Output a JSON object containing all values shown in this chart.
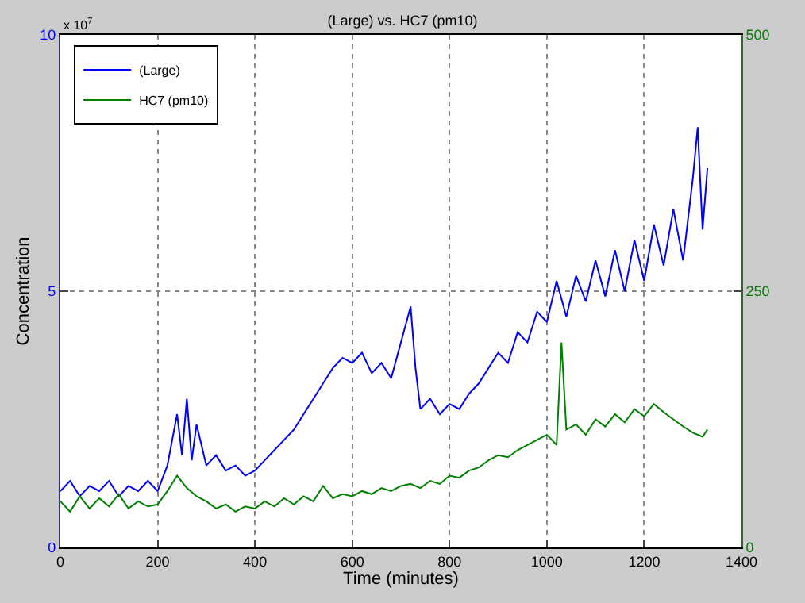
{
  "chart_data": {
    "type": "line",
    "title": "(Large) vs. HC7 (pm10)",
    "xlabel": "Time (minutes)",
    "ylabel": "Concentration",
    "annotations": [
      "x 10$^{7}$"
    ],
    "xlim": [
      0,
      1400
    ],
    "xticks": [
      0,
      200,
      400,
      600,
      800,
      1000,
      1200,
      1400
    ],
    "ylim": [
      0,
      10
    ],
    "yticks": [
      0,
      5,
      10
    ],
    "y2lim": [
      0,
      500
    ],
    "y2ticks": [
      0,
      250,
      500
    ],
    "grid": true,
    "legend": "top left",
    "line_style": "solid",
    "series": [
      {
        "name": "(Large)",
        "color": "#0000ff",
        "x": [
          0,
          20,
          40,
          60,
          80,
          100,
          120,
          140,
          160,
          180,
          200,
          220,
          240,
          250,
          260,
          270,
          280,
          300,
          320,
          340,
          360,
          380,
          400,
          420,
          440,
          460,
          480,
          500,
          520,
          540,
          560,
          580,
          600,
          620,
          640,
          660,
          680,
          700,
          720,
          730,
          740,
          760,
          780,
          800,
          820,
          840,
          860,
          880,
          900,
          920,
          940,
          960,
          980,
          1000,
          1020,
          1040,
          1060,
          1080,
          1100,
          1120,
          1140,
          1160,
          1180,
          1200,
          1220,
          1240,
          1260,
          1280,
          1300,
          1310,
          1320,
          1330
        ],
        "values": [
          1.1,
          1.3,
          1.0,
          1.2,
          1.1,
          1.3,
          1.0,
          1.2,
          1.1,
          1.3,
          1.1,
          1.6,
          2.6,
          1.8,
          2.9,
          1.7,
          2.4,
          1.6,
          1.8,
          1.5,
          1.6,
          1.4,
          1.5,
          1.7,
          1.9,
          2.1,
          2.3,
          2.6,
          2.9,
          3.2,
          3.5,
          3.7,
          3.6,
          3.8,
          3.4,
          3.6,
          3.3,
          4.0,
          4.7,
          3.5,
          2.7,
          2.9,
          2.6,
          2.8,
          2.7,
          3.0,
          3.2,
          3.5,
          3.8,
          3.6,
          4.2,
          4.0,
          4.6,
          4.4,
          5.2,
          4.5,
          5.3,
          4.8,
          5.6,
          4.9,
          5.8,
          5.0,
          6.0,
          5.2,
          6.3,
          5.5,
          6.6,
          5.6,
          7.2,
          8.2,
          6.2,
          7.4
        ]
      },
      {
        "name": "HC7 (pm10)",
        "color": "#008000",
        "axis": "y2",
        "x": [
          0,
          20,
          40,
          60,
          80,
          100,
          120,
          140,
          160,
          180,
          200,
          220,
          240,
          260,
          280,
          300,
          320,
          340,
          360,
          380,
          400,
          420,
          440,
          460,
          480,
          500,
          520,
          540,
          560,
          580,
          600,
          620,
          640,
          660,
          680,
          700,
          720,
          740,
          760,
          780,
          800,
          820,
          840,
          860,
          880,
          900,
          920,
          940,
          960,
          980,
          1000,
          1020,
          1030,
          1040,
          1060,
          1080,
          1100,
          1120,
          1140,
          1160,
          1180,
          1200,
          1220,
          1240,
          1260,
          1280,
          1300,
          1320,
          1330
        ],
        "values": [
          45,
          35,
          50,
          38,
          48,
          40,
          52,
          38,
          45,
          40,
          42,
          55,
          70,
          58,
          50,
          45,
          38,
          42,
          35,
          40,
          38,
          45,
          40,
          48,
          42,
          50,
          45,
          60,
          48,
          52,
          50,
          55,
          52,
          58,
          55,
          60,
          62,
          58,
          65,
          62,
          70,
          68,
          75,
          78,
          85,
          90,
          88,
          95,
          100,
          105,
          110,
          100,
          200,
          115,
          120,
          110,
          125,
          118,
          130,
          122,
          135,
          128,
          140,
          132,
          125,
          118,
          112,
          108,
          115
        ]
      }
    ]
  }
}
